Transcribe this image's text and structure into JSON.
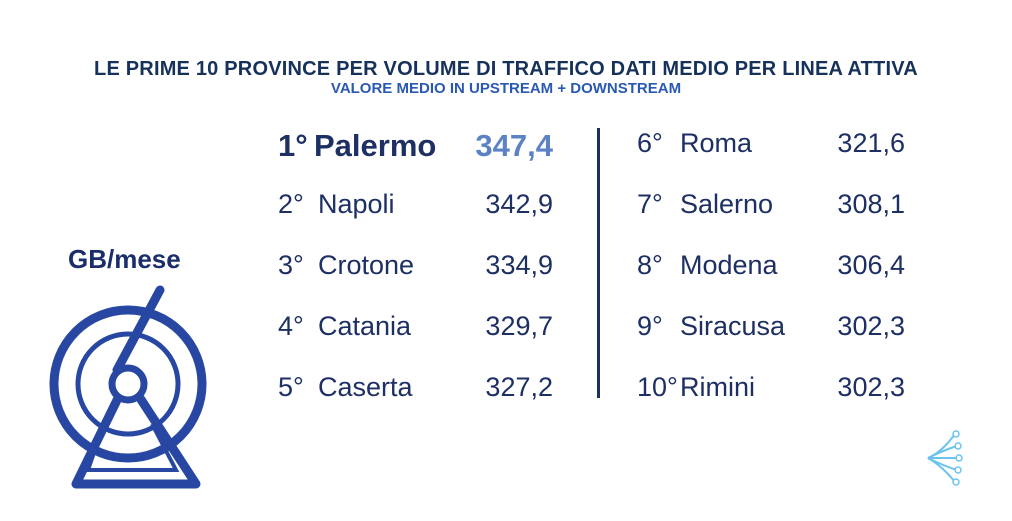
{
  "title": "LE PRIME 10 PROVINCE PER VOLUME DI TRAFFICO DATI MEDIO PER LINEA ATTIVA",
  "subtitle": "VALORE MEDIO IN UPSTREAM + DOWNSTREAM",
  "unit_label": "GB/mese",
  "colors": {
    "primary": "#1d2f63",
    "highlight": "#5a82c4",
    "fiber": "#4aa3dc"
  },
  "chart_data": {
    "type": "table",
    "title": "LE PRIME 10 PROVINCE PER VOLUME DI TRAFFICO DATI MEDIO PER LINEA ATTIVA",
    "subtitle": "VALORE MEDIO IN UPSTREAM + DOWNSTREAM",
    "unit": "GB/mese",
    "rows": [
      {
        "rank": "1°",
        "province": "Palermo",
        "value": "347,4"
      },
      {
        "rank": "2°",
        "province": "Napoli",
        "value": "342,9"
      },
      {
        "rank": "3°",
        "province": "Crotone",
        "value": "334,9"
      },
      {
        "rank": "4°",
        "province": "Catania",
        "value": "329,7"
      },
      {
        "rank": "5°",
        "province": "Caserta",
        "value": "327,2"
      },
      {
        "rank": "6°",
        "province": "Roma",
        "value": "321,6"
      },
      {
        "rank": "7°",
        "province": "Salerno",
        "value": "308,1"
      },
      {
        "rank": "8°",
        "province": "Modena",
        "value": "306,4"
      },
      {
        "rank": "9°",
        "province": "Siracusa",
        "value": "302,3"
      },
      {
        "rank": "10°",
        "province": "Rimini",
        "value": "302,3"
      }
    ]
  }
}
